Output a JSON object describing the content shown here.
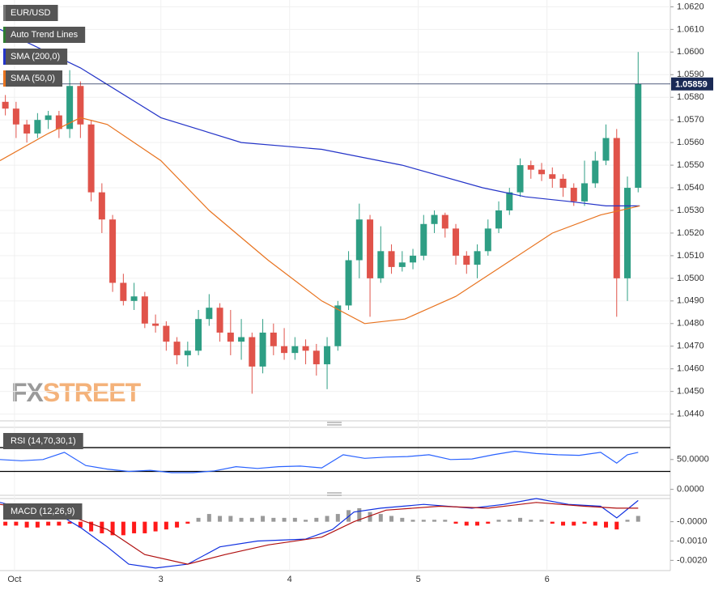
{
  "chart_data": [
    {
      "type": "candlestick",
      "symbol": "EUR/USD",
      "symbol_color": "#777777",
      "trend_lines": {
        "name": "Auto Trend Lines",
        "color": "#2e7d32"
      },
      "xlim": [
        0,
        125
      ],
      "ylim": [
        1.0437,
        1.0623
      ],
      "grid": true,
      "yticks": [
        {
          "value": 1.062,
          "label": "1.0620"
        },
        {
          "value": 1.061,
          "label": "1.0610"
        },
        {
          "value": 1.06,
          "label": "1.0600"
        },
        {
          "value": 1.059,
          "label": "1.0590"
        },
        {
          "value": 1.058,
          "label": "1.0580"
        },
        {
          "value": 1.057,
          "label": "1.0570"
        },
        {
          "value": 1.056,
          "label": "1.0560"
        },
        {
          "value": 1.055,
          "label": "1.0550"
        },
        {
          "value": 1.054,
          "label": "1.0540"
        },
        {
          "value": 1.053,
          "label": "1.0530"
        },
        {
          "value": 1.052,
          "label": "1.0520"
        },
        {
          "value": 1.051,
          "label": "1.0510"
        },
        {
          "value": 1.05,
          "label": "1.0500"
        },
        {
          "value": 1.049,
          "label": "1.0490"
        },
        {
          "value": 1.048,
          "label": "1.0480"
        },
        {
          "value": 1.047,
          "label": "1.0470"
        },
        {
          "value": 1.046,
          "label": "1.0460"
        },
        {
          "value": 1.045,
          "label": "1.0450"
        },
        {
          "value": 1.044,
          "label": "1.0440"
        }
      ],
      "last_price": 1.05859,
      "up_color": "#2e9e84",
      "down_color": "#e0534a",
      "ohlc": {
        "x": [
          1,
          3,
          5,
          7,
          9,
          11,
          13,
          15,
          17,
          19,
          21,
          23,
          25,
          27,
          29,
          31,
          33,
          35,
          37,
          39,
          41,
          43,
          45,
          47,
          49,
          51,
          53,
          55,
          57,
          59,
          61,
          63,
          65,
          67,
          69,
          71,
          73,
          75,
          77,
          79,
          81,
          83,
          85,
          87,
          89,
          91,
          93,
          95,
          97,
          99,
          101,
          103,
          105,
          107,
          109,
          111,
          113,
          115,
          117,
          119
        ],
        "open": [
          1.0578,
          1.0575,
          1.0568,
          1.0564,
          1.057,
          1.0572,
          1.0566,
          1.0585,
          1.0568,
          1.0538,
          1.0526,
          1.0498,
          1.049,
          1.0492,
          1.048,
          1.0479,
          1.0472,
          1.0466,
          1.0468,
          1.0482,
          1.0487,
          1.0476,
          1.0472,
          1.0474,
          1.0461,
          1.0476,
          1.047,
          1.0467,
          1.047,
          1.0468,
          1.0462,
          1.047,
          1.0488,
          1.0508,
          1.0526,
          1.05,
          1.0512,
          1.0505,
          1.0507,
          1.051,
          1.0524,
          1.0528,
          1.0522,
          1.051,
          1.0506,
          1.0512,
          1.0522,
          1.053,
          1.0538,
          1.055,
          1.0548,
          1.0546,
          1.0544,
          1.054,
          1.0534,
          1.0542,
          1.0552,
          1.0562,
          1.05,
          1.054
        ],
        "high": [
          1.0581,
          1.0578,
          1.057,
          1.0573,
          1.0574,
          1.0574,
          1.0592,
          1.0587,
          1.057,
          1.0542,
          1.0528,
          1.0502,
          1.0498,
          1.0494,
          1.0484,
          1.0481,
          1.0474,
          1.0472,
          1.0486,
          1.0493,
          1.0489,
          1.0486,
          1.0482,
          1.0476,
          1.0482,
          1.048,
          1.0478,
          1.0474,
          1.0473,
          1.0471,
          1.0474,
          1.049,
          1.0512,
          1.0533,
          1.0528,
          1.0523,
          1.0515,
          1.0512,
          1.0513,
          1.0528,
          1.053,
          1.0529,
          1.0524,
          1.0512,
          1.0515,
          1.0526,
          1.0534,
          1.054,
          1.0553,
          1.0552,
          1.0551,
          1.0549,
          1.0546,
          1.0542,
          1.0552,
          1.0556,
          1.0568,
          1.0566,
          1.0545,
          1.06
        ],
        "low": [
          1.0572,
          1.0562,
          1.056,
          1.0562,
          1.0566,
          1.0562,
          1.0562,
          1.0562,
          1.0534,
          1.052,
          1.0494,
          1.0488,
          1.0486,
          1.0478,
          1.0476,
          1.0468,
          1.0462,
          1.0461,
          1.0466,
          1.0479,
          1.0472,
          1.0466,
          1.0464,
          1.0449,
          1.0458,
          1.0466,
          1.0464,
          1.0464,
          1.0462,
          1.0457,
          1.0451,
          1.0468,
          1.0486,
          1.05,
          1.0483,
          1.0498,
          1.0502,
          1.0503,
          1.0504,
          1.0508,
          1.052,
          1.0518,
          1.0506,
          1.0502,
          1.05,
          1.051,
          1.052,
          1.0528,
          1.0536,
          1.0544,
          1.0543,
          1.054,
          1.0536,
          1.0532,
          1.0532,
          1.054,
          1.055,
          1.0483,
          1.049,
          1.0538
        ],
        "close": [
          1.0575,
          1.0568,
          1.0564,
          1.057,
          1.0572,
          1.0566,
          1.0585,
          1.0568,
          1.0538,
          1.0526,
          1.0498,
          1.049,
          1.0492,
          1.048,
          1.0479,
          1.0472,
          1.0466,
          1.0468,
          1.0482,
          1.0487,
          1.0476,
          1.0472,
          1.0474,
          1.0461,
          1.0476,
          1.047,
          1.0467,
          1.047,
          1.0468,
          1.0462,
          1.047,
          1.0488,
          1.0508,
          1.0526,
          1.05,
          1.0512,
          1.0505,
          1.0507,
          1.051,
          1.0524,
          1.0528,
          1.0522,
          1.051,
          1.0506,
          1.0512,
          1.0522,
          1.053,
          1.0538,
          1.055,
          1.0548,
          1.0546,
          1.0544,
          1.054,
          1.0534,
          1.0542,
          1.0552,
          1.0562,
          1.05,
          1.054,
          1.0586
        ]
      },
      "series": [
        {
          "name": "SMA (200,0)",
          "color": "#2434c8",
          "x": [
            0,
            15,
            30,
            45,
            60,
            75,
            90,
            98,
            106,
            113,
            119.3
          ],
          "values": [
            1.061,
            1.0593,
            1.0571,
            1.056,
            1.0557,
            1.055,
            1.054,
            1.0536,
            1.0534,
            1.0532,
            1.0532
          ]
        },
        {
          "name": "SMA (50,0)",
          "color": "#e8731f",
          "x": [
            0,
            9,
            15,
            20,
            30,
            39,
            50,
            60,
            68,
            75.5,
            85,
            94,
            103,
            112,
            119.3
          ],
          "values": [
            1.0552,
            1.0564,
            1.0571,
            1.0568,
            1.0552,
            1.053,
            1.0508,
            1.049,
            1.048,
            1.0482,
            1.0492,
            1.0506,
            1.052,
            1.0528,
            1.0532
          ]
        }
      ],
      "watermark_parts": [
        "FX",
        "STREET"
      ]
    },
    {
      "type": "line",
      "label": "RSI (14,70,30,1)",
      "xlim": [
        0,
        125
      ],
      "ylim": [
        -10,
        104
      ],
      "yticks": [
        {
          "value": 50,
          "label": "50.0000"
        },
        {
          "value": 0,
          "label": "0.0000"
        }
      ],
      "levels": [
        70,
        30
      ],
      "series": [
        {
          "color": "#2962ff",
          "x": [
            0,
            4,
            8,
            12,
            16,
            20,
            24,
            28,
            32,
            36,
            40,
            44,
            48,
            52,
            56,
            60,
            64,
            68,
            72,
            76,
            80,
            84,
            88,
            92,
            96,
            100,
            104,
            108,
            112,
            115,
            117,
            119
          ],
          "values": [
            50,
            48,
            50,
            62,
            40,
            34,
            30,
            32,
            28,
            28,
            31,
            38,
            35,
            38,
            39,
            36,
            58,
            52,
            54,
            55,
            58,
            50,
            51,
            58,
            64,
            60,
            58,
            57,
            62,
            44,
            58,
            62
          ]
        }
      ]
    },
    {
      "type": "combo",
      "label": "MACD (12,26,9)",
      "xlim": [
        0,
        125
      ],
      "ylim": [
        -0.00253,
        0.0012
      ],
      "yticks": [
        {
          "value": 0,
          "label": "-0.0000"
        },
        {
          "value": -0.001,
          "label": "-0.0010"
        },
        {
          "value": -0.002,
          "label": "-0.0020"
        }
      ],
      "xticks": [
        {
          "value": 2.7,
          "label": "Oct"
        },
        {
          "value": 30,
          "label": "3"
        },
        {
          "value": 54,
          "label": "4"
        },
        {
          "value": 78,
          "label": "5"
        },
        {
          "value": 102,
          "label": "6"
        }
      ],
      "series": [
        {
          "type": "bar",
          "positive_color": "#9a9a9a",
          "negative_color": "#ff1a1a",
          "x": [
            1,
            3,
            5,
            7,
            9,
            11,
            13,
            15,
            17,
            19,
            21,
            23,
            25,
            27,
            29,
            31,
            33,
            35,
            37,
            39,
            41,
            43,
            45,
            47,
            49,
            51,
            53,
            55,
            57,
            59,
            61,
            63,
            65,
            67,
            69,
            71,
            73,
            75,
            77,
            79,
            81,
            83,
            85,
            87,
            89,
            91,
            93,
            95,
            97,
            99,
            101,
            103,
            105,
            107,
            109,
            111,
            113,
            115,
            117,
            119
          ],
          "values": [
            -0.0002,
            -0.0002,
            -0.0003,
            -0.0003,
            -0.0002,
            -0.0002,
            -0.0001,
            -0.0003,
            -0.0005,
            -0.0006,
            -0.0007,
            -0.0007,
            -0.0006,
            -0.0006,
            -0.0005,
            -0.0004,
            -0.0003,
            -0.0001,
            0.0002,
            0.0004,
            0.0003,
            0.0003,
            0.0002,
            0.0002,
            0.0003,
            0.0002,
            0.0002,
            0.0002,
            0.0001,
            0.0002,
            0.0003,
            0.0004,
            0.0006,
            0.0007,
            0.0005,
            0.0004,
            0.0003,
            0.0002,
            0.0001,
            0.0001,
            0.0001,
            0.0001,
            -0.0001,
            -0.0002,
            -0.0002,
            -0.0001,
            0.0001,
            0.0001,
            0.0002,
            0.0001,
            0.0001,
            -0.0001,
            -0.0002,
            -0.0002,
            -0.0001,
            -0.0002,
            -0.0003,
            -0.0004,
            0.0001,
            0.0003
          ]
        },
        {
          "type": "line",
          "color": "#1030e0",
          "x": [
            0,
            12,
            15,
            20,
            24,
            29,
            35,
            41,
            48,
            57,
            62,
            66,
            71,
            79,
            88,
            94,
            100,
            106,
            112,
            115,
            119
          ],
          "values": [
            0.001,
            0.0002,
            -0.0003,
            -0.0013,
            -0.0022,
            -0.0024,
            -0.0022,
            -0.0013,
            -0.001,
            -0.0009,
            -0.0004,
            0.0005,
            0.0007,
            0.0009,
            0.0007,
            0.0009,
            0.0012,
            0.0009,
            0.0008,
            0.0002,
            0.0011
          ]
        },
        {
          "type": "line",
          "color": "#b01010",
          "x": [
            0,
            12,
            20,
            27,
            35,
            42,
            50,
            60,
            66,
            72,
            82,
            91,
            100,
            109,
            115,
            119
          ],
          "values": [
            0.0009,
            0.0004,
            -0.0004,
            -0.0017,
            -0.0022,
            -0.0017,
            -0.0012,
            -0.0008,
            0,
            0.0006,
            0.0008,
            0.0007,
            0.001,
            0.0008,
            0.0007,
            0.0007
          ]
        }
      ]
    }
  ]
}
